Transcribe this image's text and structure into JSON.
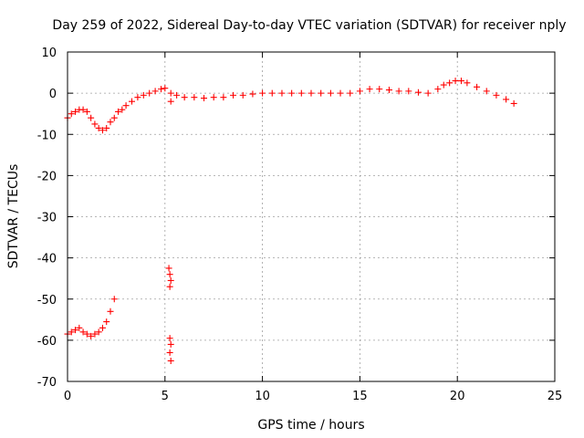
{
  "chart_data": {
    "type": "scatter",
    "title": "Day 259 of 2022, Sidereal Day-to-day VTEC variation (SDTVAR) for receiver nply",
    "xlabel": "GPS time / hours",
    "ylabel": "SDTVAR / TECUs",
    "xlim": [
      0,
      25
    ],
    "ylim": [
      -70,
      10
    ],
    "xticks": [
      0,
      5,
      10,
      15,
      20,
      25
    ],
    "yticks": [
      10,
      0,
      -10,
      -20,
      -30,
      -40,
      -50,
      -60,
      -70
    ],
    "grid": true,
    "marker": "+",
    "color": "#ff0000",
    "series": [
      {
        "name": "SDTVAR",
        "x": [
          0.0,
          0.2,
          0.4,
          0.6,
          0.8,
          1.0,
          1.2,
          1.4,
          1.6,
          1.8,
          2.0,
          2.2,
          2.4,
          2.6,
          2.8,
          3.0,
          3.3,
          3.6,
          3.9,
          4.2,
          4.5,
          4.8,
          5.0,
          5.3,
          5.6,
          6.0,
          6.5,
          7.0,
          7.5,
          8.0,
          8.5,
          9.0,
          9.5,
          10.0,
          10.5,
          11.0,
          11.5,
          12.0,
          12.5,
          13.0,
          13.5,
          14.0,
          14.5,
          15.0,
          15.5,
          16.0,
          16.5,
          17.0,
          17.5,
          18.0,
          18.5,
          19.0,
          19.3,
          19.6,
          19.9,
          20.2,
          20.5,
          21.0,
          21.5,
          22.0,
          22.5,
          22.9,
          5.3,
          0.0,
          0.2,
          0.4,
          0.6,
          0.8,
          1.0,
          1.2,
          1.4,
          1.6,
          1.8,
          2.0,
          2.2,
          2.4,
          5.2,
          5.25,
          5.3,
          5.25,
          5.25,
          5.3,
          5.25,
          5.3
        ],
        "y": [
          -6.0,
          -5.0,
          -4.5,
          -4.0,
          -4.0,
          -4.5,
          -6.0,
          -7.5,
          -8.5,
          -9.0,
          -8.5,
          -7.0,
          -6.0,
          -4.5,
          -4.0,
          -3.0,
          -2.0,
          -1.0,
          -0.5,
          0.0,
          0.5,
          1.0,
          1.2,
          0.0,
          -0.5,
          -1.0,
          -1.0,
          -1.2,
          -1.0,
          -1.0,
          -0.5,
          -0.5,
          -0.2,
          0.0,
          0.0,
          0.0,
          0.0,
          0.0,
          0.0,
          0.0,
          0.0,
          0.0,
          0.0,
          0.5,
          1.0,
          1.0,
          0.8,
          0.5,
          0.5,
          0.2,
          0.0,
          1.0,
          2.0,
          2.5,
          3.0,
          3.0,
          2.5,
          1.5,
          0.5,
          -0.5,
          -1.5,
          -2.5,
          -2.0,
          -58.5,
          -58.0,
          -57.5,
          -57.0,
          -58.0,
          -58.5,
          -59.0,
          -58.5,
          -58.0,
          -57.0,
          -55.5,
          -53.0,
          -50.0,
          -42.5,
          -44.0,
          -45.5,
          -47.0,
          -59.5,
          -61.0,
          -63.0,
          -65.0
        ]
      }
    ]
  }
}
